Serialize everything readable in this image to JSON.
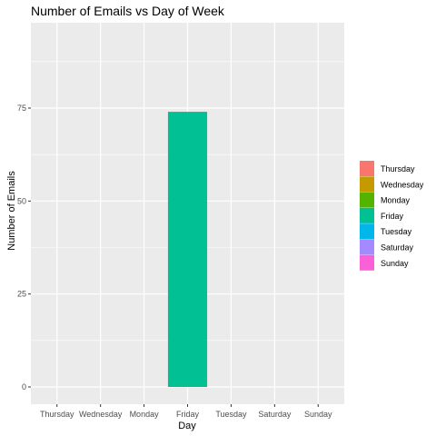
{
  "chart_data": {
    "type": "bar",
    "title": "Number of Emails vs Day of Week",
    "xlabel": "Day",
    "ylabel": "Number of Emails",
    "categories": [
      "Thursday",
      "Wednesday",
      "Monday",
      "Friday",
      "Tuesday",
      "Saturday",
      "Sunday"
    ],
    "values": [
      0,
      0,
      0,
      74,
      0,
      0,
      0
    ],
    "ylim": [
      0,
      93
    ],
    "yticks": [
      "0",
      "25",
      "50",
      "75"
    ],
    "grid": true,
    "legend_position": "right",
    "legend": [
      {
        "label": "Thursday",
        "color": "#F8766D"
      },
      {
        "label": "Wednesday",
        "color": "#C49A00"
      },
      {
        "label": "Monday",
        "color": "#53B400"
      },
      {
        "label": "Friday",
        "color": "#00C094"
      },
      {
        "label": "Tuesday",
        "color": "#00B6EB"
      },
      {
        "label": "Saturday",
        "color": "#A58AFF"
      },
      {
        "label": "Sunday",
        "color": "#FB61D7"
      }
    ],
    "panel_background": "#EBEBEB",
    "grid_color": "#FFFFFF"
  }
}
